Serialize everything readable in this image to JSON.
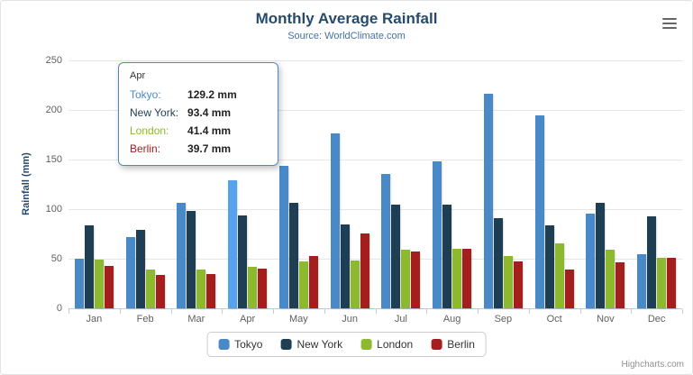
{
  "chart": {
    "title": "Monthly Average Rainfall",
    "subtitle": "Source: WorldClimate.com",
    "credits": "Highcharts.com",
    "title_color": "#274B6D",
    "subtitle_color": "#4572A7"
  },
  "chart_data": {
    "type": "bar",
    "title": "Monthly Average Rainfall",
    "subtitle": "Source: WorldClimate.com",
    "categories": [
      "Jan",
      "Feb",
      "Mar",
      "Apr",
      "May",
      "Jun",
      "Jul",
      "Aug",
      "Sep",
      "Oct",
      "Nov",
      "Dec"
    ],
    "series": [
      {
        "name": "Tokyo",
        "color": "#4A89C8",
        "values": [
          49.9,
          71.5,
          106.4,
          129.2,
          144.0,
          176.0,
          135.6,
          148.5,
          216.4,
          194.1,
          95.6,
          54.4
        ]
      },
      {
        "name": "New York",
        "color": "#1D3E53",
        "values": [
          83.6,
          78.8,
          98.5,
          93.4,
          106.0,
          84.5,
          105.0,
          104.3,
          91.2,
          83.5,
          106.6,
          92.3
        ]
      },
      {
        "name": "London",
        "color": "#8DB92E",
        "values": [
          48.9,
          38.8,
          39.3,
          41.4,
          47.0,
          48.3,
          59.0,
          59.6,
          52.4,
          65.2,
          59.3,
          51.2
        ]
      },
      {
        "name": "Berlin",
        "color": "#A41E1E",
        "values": [
          42.4,
          33.2,
          34.5,
          39.7,
          52.6,
          75.5,
          57.4,
          60.4,
          47.6,
          39.1,
          46.8,
          51.1
        ]
      }
    ],
    "xlabel": "",
    "ylabel": "Rainfall (mm)",
    "ylim": [
      0,
      250
    ],
    "yticks": [
      0,
      50,
      100,
      150,
      200,
      250
    ],
    "grid": true,
    "legend_position": "bottom",
    "hover": {
      "series_index": 0,
      "category_index": 3
    }
  },
  "tooltip": {
    "header": "Apr",
    "rows": [
      {
        "label": "Tokyo:",
        "value": "129.2 mm",
        "color": "#4A89C8"
      },
      {
        "label": "New York:",
        "value": "93.4 mm",
        "color": "#1D3E53"
      },
      {
        "label": "London:",
        "value": "41.4 mm",
        "color": "#8DB92E"
      },
      {
        "label": "Berlin:",
        "value": "39.7 mm",
        "color": "#A41E1E"
      }
    ]
  }
}
